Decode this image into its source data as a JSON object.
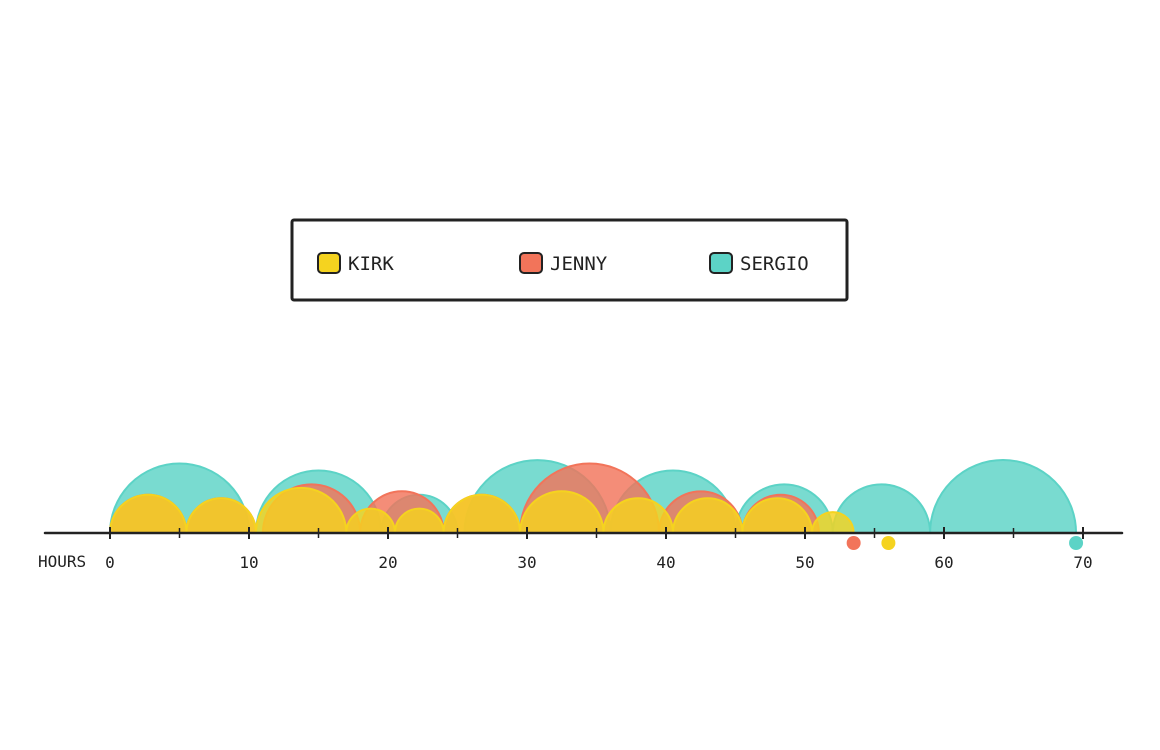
{
  "chart_data": {
    "type": "other",
    "description_type": "arc timeline (each semicircle spans one interval of hours)",
    "xlabel": "HOURS",
    "xlim": [
      0,
      70
    ],
    "x_ticks": [
      0,
      10,
      20,
      30,
      40,
      50,
      60,
      70
    ],
    "legend": {
      "placement": "top-center",
      "boxed": true
    },
    "series": [
      {
        "name": "KIRK",
        "color": "#f5d31f",
        "intervals": [
          [
            0,
            5.5
          ],
          [
            5.5,
            10.5
          ],
          [
            10.5,
            17
          ],
          [
            17,
            20.5
          ],
          [
            20.5,
            24
          ],
          [
            24,
            29.5
          ],
          [
            29.5,
            35.5
          ],
          [
            35.5,
            40.5
          ],
          [
            40.5,
            45.5
          ],
          [
            45.5,
            50.5
          ],
          [
            50.5,
            53.5
          ]
        ],
        "end_point": 56
      },
      {
        "name": "JENNY",
        "color": "#f2745a",
        "intervals": [
          [
            0,
            5.5
          ],
          [
            5.5,
            10.5
          ],
          [
            11,
            18
          ],
          [
            18,
            24
          ],
          [
            24,
            29.5
          ],
          [
            29.5,
            39.5
          ],
          [
            39.5,
            45.5
          ],
          [
            45.5,
            51
          ]
        ],
        "end_point": 53.5
      },
      {
        "name": "SERGIO",
        "color": "#5cd3c6",
        "intervals": [
          [
            0,
            10
          ],
          [
            10.5,
            19.5
          ],
          [
            19.5,
            25
          ],
          [
            25.5,
            36
          ],
          [
            36,
            45
          ],
          [
            45,
            52
          ],
          [
            52,
            59
          ],
          [
            59,
            69.5
          ]
        ],
        "end_point": 69.5
      }
    ]
  }
}
